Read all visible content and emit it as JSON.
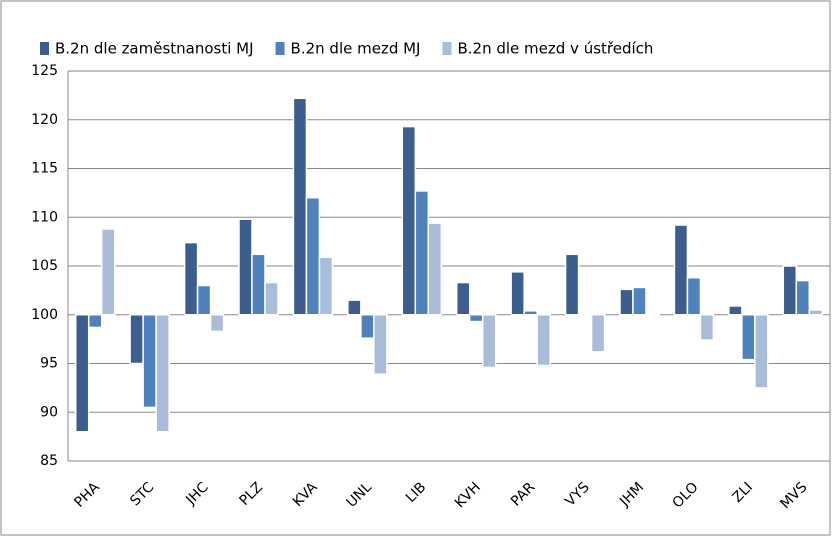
{
  "chart_data": {
    "type": "bar",
    "baseline": 100,
    "categories": [
      "PHA",
      "STC",
      "JHC",
      "PLZ",
      "KVA",
      "UNL",
      "LIB",
      "KVH",
      "PAR",
      "VYS",
      "JHM",
      "OLO",
      "ZLI",
      "MVS"
    ],
    "series": [
      {
        "name": "B.2n dle zaměstnanosti MJ",
        "color": "#3b5e8e",
        "values": [
          88,
          95,
          107.4,
          109.8,
          122.2,
          101.5,
          119.3,
          103.3,
          104.4,
          106.2,
          102.6,
          109.2,
          100.9,
          105
        ]
      },
      {
        "name": "B.2n dle mezd MJ",
        "color": "#4f81bd",
        "values": [
          98.7,
          90.5,
          103,
          106.2,
          112,
          97.6,
          112.7,
          99.3,
          100.4,
          100,
          102.8,
          103.8,
          95.4,
          103.5
        ]
      },
      {
        "name": "B.2n dle mezd v ústředích",
        "color": "#a9bcd9",
        "values": [
          108.8,
          88,
          98.3,
          103.3,
          105.9,
          93.9,
          109.4,
          94.6,
          94.8,
          96.2,
          100,
          97.4,
          92.5,
          100.5
        ]
      }
    ],
    "ylim": [
      85,
      125
    ],
    "yticks": [
      85,
      90,
      95,
      100,
      105,
      110,
      115,
      120,
      125
    ],
    "grid": true,
    "legend": "top"
  }
}
